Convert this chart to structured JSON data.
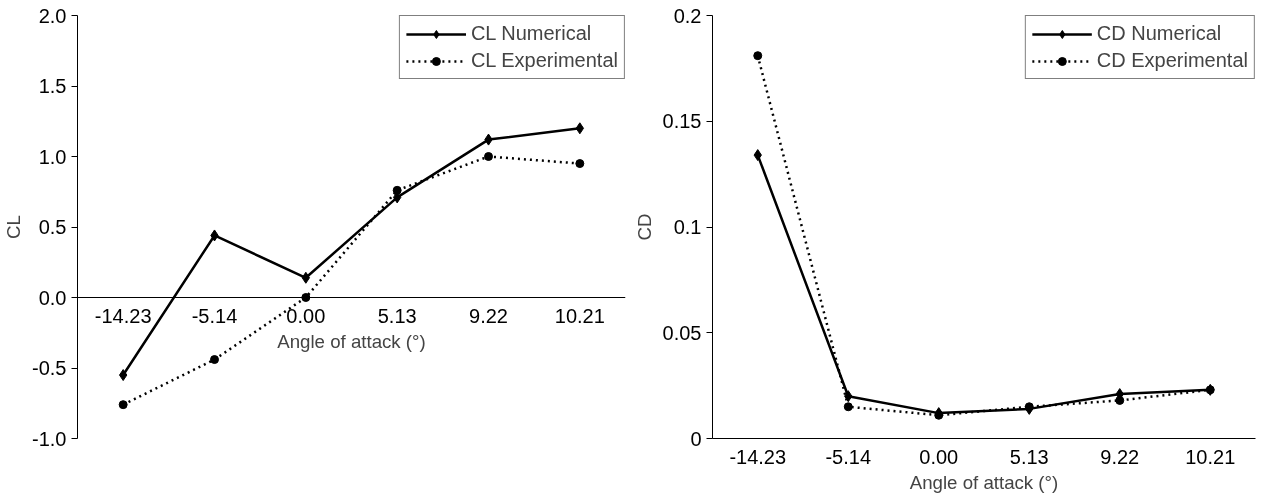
{
  "chart_data": [
    {
      "type": "line",
      "xlabel": "Angle of attack (°)",
      "ylabel": "CL",
      "categories": [
        "-14.23",
        "-5.14",
        "0.00",
        "5.13",
        "9.22",
        "10.21"
      ],
      "series": [
        {
          "name": "CL Numerical",
          "color": "#000000",
          "marker": "diamond",
          "line_style": "solid",
          "values": [
            -0.55,
            0.44,
            0.14,
            0.71,
            1.12,
            1.2
          ]
        },
        {
          "name": "CL Experimental",
          "color": "#000000",
          "marker": "circle",
          "line_style": "dotted",
          "values": [
            -0.76,
            -0.44,
            0.0,
            0.76,
            1.0,
            0.95
          ]
        }
      ],
      "ylim": [
        -1.0,
        2.0
      ],
      "yticks": [
        {
          "value": -1.0,
          "label": "-1.0"
        },
        {
          "value": -0.5,
          "label": "-0.5"
        },
        {
          "value": 0,
          "label": "0.0"
        },
        {
          "value": 0.5,
          "label": "0.5"
        },
        {
          "value": 1.0,
          "label": "1.0"
        },
        {
          "value": 1.5,
          "label": "1.5"
        },
        {
          "value": 2.0,
          "label": "2.0"
        }
      ],
      "grid": false,
      "legend": "top right"
    },
    {
      "type": "line",
      "xlabel": "Angle of attack (°)",
      "ylabel": "CD",
      "categories": [
        "-14.23",
        "-5.14",
        "0.00",
        "5.13",
        "9.22",
        "10.21"
      ],
      "series": [
        {
          "name": "CD Numerical",
          "color": "#000000",
          "marker": "diamond",
          "line_style": "solid",
          "values": [
            0.134,
            0.02,
            0.012,
            0.014,
            0.021,
            0.023
          ]
        },
        {
          "name": "CD Experimental",
          "color": "#000000",
          "marker": "circle",
          "line_style": "dotted",
          "values": [
            0.181,
            0.015,
            0.011,
            0.015,
            0.018,
            0.023
          ]
        }
      ],
      "ylim": [
        0,
        0.2
      ],
      "yticks": [
        0,
        0.05,
        0.1,
        0.15,
        0.2
      ],
      "grid": false,
      "legend": "top right"
    }
  ]
}
